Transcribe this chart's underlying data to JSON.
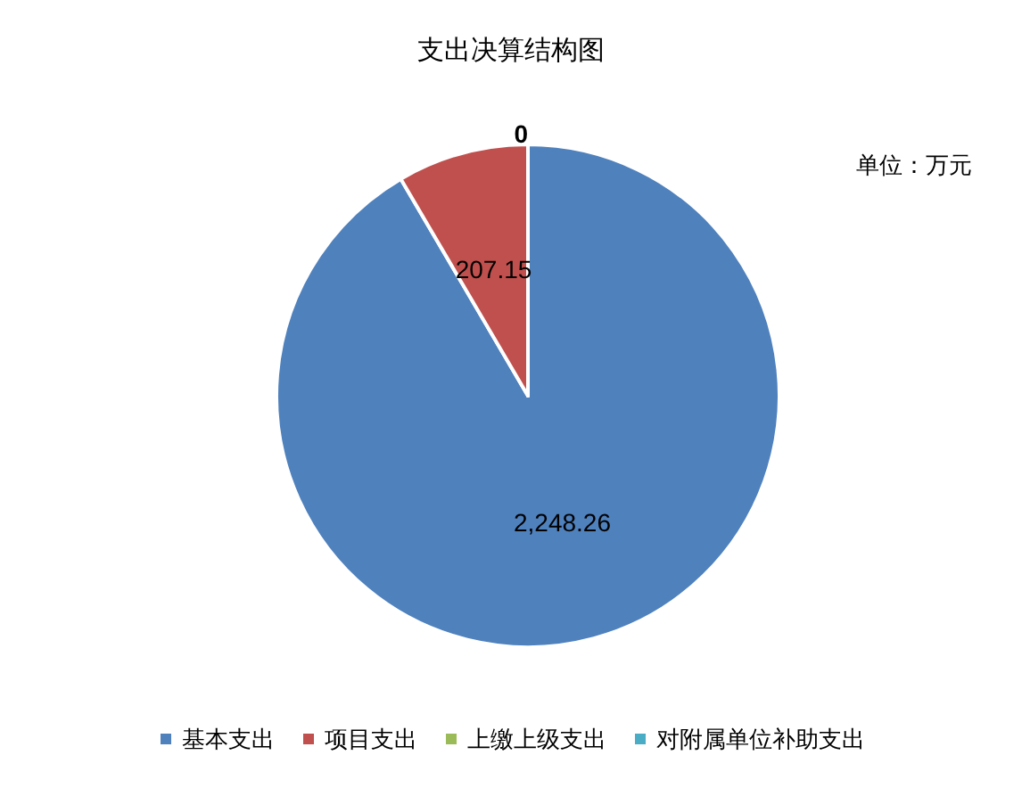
{
  "chart_data": {
    "type": "pie",
    "title": "支出决算结构图",
    "categories": [
      "基本支出",
      "项目支出",
      "上缴上级支出",
      "对附属单位补助支出"
    ],
    "values": [
      2248.26,
      207.15,
      0,
      0
    ],
    "colors": [
      "#4f81bd",
      "#c0504d",
      "#9bbb59",
      "#4bacc6"
    ],
    "value_labels": [
      "2,248.26",
      "207.15",
      "0",
      null
    ],
    "annotations": [
      "单位：万元"
    ],
    "legend": "bottom"
  }
}
